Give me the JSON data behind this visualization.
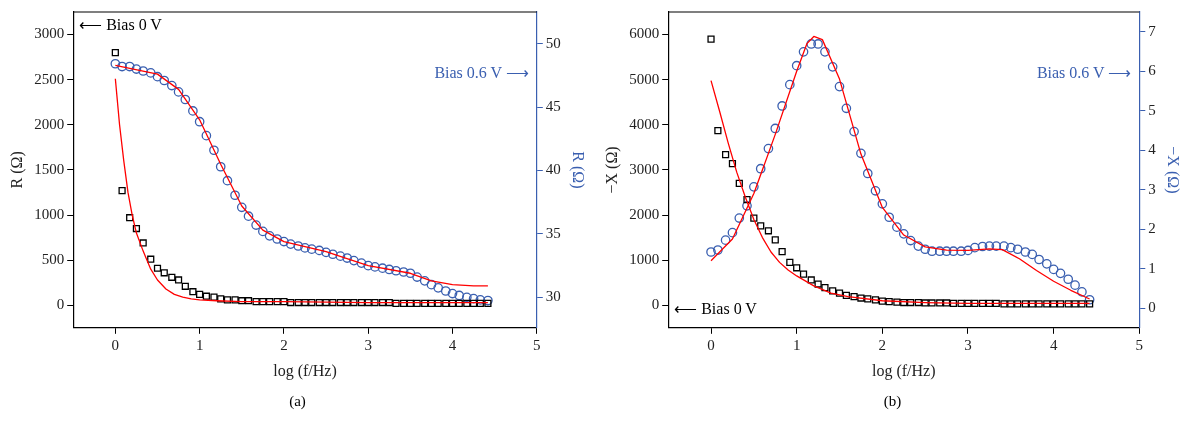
{
  "chart_data": [
    {
      "type": "scatter",
      "xlabel": "log (f/Hz)",
      "ylabel": "R (Ω)",
      "y2label": "R (Ω)",
      "annotations": [
        "(a)",
        "⟵ Bias 0 V",
        "Bias 0.6 V ⟶"
      ],
      "xlim": [
        -0.5,
        5
      ],
      "xticks": [
        0,
        1,
        2,
        3,
        4,
        5
      ],
      "ylim": [
        -250,
        3250
      ],
      "yticks": [
        0,
        500,
        1000,
        1500,
        2000,
        2500,
        3000
      ],
      "y2lim": [
        27.6,
        52.5
      ],
      "y2ticks": [
        30,
        35,
        40,
        45,
        50
      ],
      "x": [
        0,
        0.08,
        0.17,
        0.25,
        0.33,
        0.42,
        0.5,
        0.58,
        0.67,
        0.75,
        0.83,
        0.92,
        1,
        1.08,
        1.17,
        1.25,
        1.33,
        1.42,
        1.5,
        1.58,
        1.67,
        1.75,
        1.83,
        1.92,
        2,
        2.08,
        2.17,
        2.25,
        2.33,
        2.42,
        2.5,
        2.58,
        2.67,
        2.75,
        2.83,
        2.92,
        3,
        3.08,
        3.17,
        3.25,
        3.33,
        3.42,
        3.5,
        3.58,
        3.67,
        3.75,
        3.83,
        3.92,
        4,
        4.08,
        4.17,
        4.25,
        4.33,
        4.42
      ],
      "series": [
        {
          "type": "scatter",
          "marker": "square",
          "color": "#000000",
          "values": [
            2800,
            1270,
            970,
            850,
            690,
            510,
            410,
            360,
            310,
            280,
            210,
            150,
            120,
            100,
            90,
            70,
            60,
            60,
            50,
            50,
            40,
            40,
            40,
            40,
            40,
            30,
            30,
            30,
            30,
            30,
            30,
            30,
            30,
            30,
            30,
            30,
            30,
            30,
            30,
            30,
            20,
            20,
            20,
            20,
            20,
            20,
            20,
            20,
            20,
            20,
            20,
            20,
            20,
            20
          ]
        },
        {
          "type": "line",
          "marker": "none",
          "color": "#ff0000",
          "x": [
            0,
            0.05,
            0.1,
            0.15,
            0.2,
            0.25,
            0.33,
            0.42,
            0.5,
            0.6,
            0.7,
            0.8,
            0.9,
            1,
            1.2,
            1.5,
            2,
            3,
            4.42
          ],
          "values": [
            2510,
            2000,
            1600,
            1250,
            1000,
            800,
            600,
            400,
            280,
            180,
            120,
            90,
            70,
            60,
            50,
            40,
            40,
            30,
            30
          ]
        },
        {
          "type": "scatter",
          "marker": "circle",
          "axis": "y2",
          "color": "#3a5fb0",
          "values": [
            48.42,
            48.2,
            48.2,
            48.0,
            47.85,
            47.7,
            47.4,
            47.1,
            46.7,
            46.2,
            45.6,
            44.7,
            43.85,
            42.75,
            41.6,
            40.3,
            39.2,
            38.05,
            37.1,
            36.4,
            35.7,
            35.2,
            34.85,
            34.6,
            34.4,
            34.2,
            34.05,
            33.9,
            33.8,
            33.7,
            33.55,
            33.4,
            33.25,
            33.1,
            32.9,
            32.7,
            32.5,
            32.4,
            32.3,
            32.2,
            32.1,
            32.0,
            31.9,
            31.6,
            31.3,
            31.0,
            30.75,
            30.5,
            30.3,
            30.15,
            30.0,
            29.9,
            29.8,
            29.75
          ]
        },
        {
          "type": "line",
          "marker": "none",
          "axis": "y2",
          "color": "#ff0000",
          "x": [
            0,
            0.5,
            0.75,
            1,
            1.25,
            1.5,
            1.75,
            2,
            2.5,
            3,
            3.5,
            3.75,
            4,
            4.25,
            4.42
          ],
          "values": [
            48.3,
            47.6,
            46.4,
            44.0,
            40.5,
            37.2,
            35.3,
            34.4,
            33.6,
            32.5,
            31.9,
            31.3,
            31.0,
            30.9,
            30.9
          ]
        }
      ]
    },
    {
      "type": "scatter",
      "xlabel": "log (f/Hz)",
      "ylabel": "−X (Ω)",
      "y2label": "−X (Ω)",
      "annotations": [
        "(b)",
        "⟵ Bias 0 V",
        "Bias 0.6 V ⟶"
      ],
      "xlim": [
        -0.5,
        5
      ],
      "xticks": [
        0,
        1,
        2,
        3,
        4,
        5
      ],
      "ylim": [
        -500,
        6500
      ],
      "yticks": [
        0,
        1000,
        2000,
        3000,
        4000,
        5000,
        6000
      ],
      "y2lim": [
        -0.5,
        7.5
      ],
      "y2ticks": [
        0,
        1,
        2,
        3,
        4,
        5,
        6,
        7
      ],
      "x": [
        0,
        0.08,
        0.17,
        0.25,
        0.33,
        0.42,
        0.5,
        0.58,
        0.67,
        0.75,
        0.83,
        0.92,
        1,
        1.08,
        1.17,
        1.25,
        1.33,
        1.42,
        1.5,
        1.58,
        1.67,
        1.75,
        1.83,
        1.92,
        2,
        2.08,
        2.17,
        2.25,
        2.33,
        2.42,
        2.5,
        2.58,
        2.67,
        2.75,
        2.83,
        2.92,
        3,
        3.08,
        3.17,
        3.25,
        3.33,
        3.42,
        3.5,
        3.58,
        3.67,
        3.75,
        3.83,
        3.92,
        4,
        4.08,
        4.17,
        4.25,
        4.33,
        4.42
      ],
      "series": [
        {
          "type": "scatter",
          "marker": "square",
          "color": "#000000",
          "values": [
            5900,
            3870,
            3340,
            3140,
            2700,
            2340,
            1930,
            1760,
            1650,
            1450,
            1190,
            950,
            830,
            690,
            560,
            470,
            390,
            320,
            270,
            220,
            190,
            160,
            140,
            120,
            90,
            80,
            70,
            60,
            60,
            60,
            50,
            50,
            50,
            50,
            40,
            40,
            40,
            40,
            40,
            40,
            40,
            30,
            30,
            30,
            30,
            30,
            30,
            30,
            30,
            30,
            30,
            30,
            30,
            30
          ]
        },
        {
          "type": "line",
          "marker": "none",
          "color": "#ff0000",
          "x": [
            0,
            0.1,
            0.2,
            0.3,
            0.4,
            0.5,
            0.6,
            0.7,
            0.8,
            0.9,
            1,
            1.2,
            1.4,
            1.6,
            2,
            2.5,
            3,
            4.42
          ],
          "values": [
            4980,
            4300,
            3600,
            2950,
            2400,
            1900,
            1500,
            1180,
            950,
            780,
            650,
            430,
            270,
            190,
            100,
            60,
            40,
            40
          ]
        },
        {
          "type": "scatter",
          "marker": "circle",
          "axis": "y2",
          "color": "#3a5fb0",
          "values": [
            1.42,
            1.47,
            1.72,
            1.91,
            2.28,
            2.59,
            3.07,
            3.53,
            4.04,
            4.55,
            5.12,
            5.66,
            6.14,
            6.49,
            6.69,
            6.69,
            6.49,
            6.11,
            5.61,
            5.06,
            4.47,
            3.92,
            3.41,
            2.97,
            2.64,
            2.3,
            2.05,
            1.88,
            1.71,
            1.57,
            1.49,
            1.44,
            1.44,
            1.44,
            1.44,
            1.44,
            1.46,
            1.53,
            1.56,
            1.57,
            1.57,
            1.57,
            1.53,
            1.49,
            1.42,
            1.36,
            1.23,
            1.12,
            0.98,
            0.88,
            0.73,
            0.58,
            0.41,
            0.21
          ]
        },
        {
          "type": "line",
          "marker": "none",
          "axis": "y2",
          "color": "#ff0000",
          "x": [
            0,
            0.25,
            0.5,
            0.75,
            1,
            1.12,
            1.2,
            1.3,
            1.5,
            1.75,
            2,
            2.25,
            2.5,
            2.75,
            3,
            3.25,
            3.4,
            3.6,
            3.8,
            4,
            4.2,
            4.42
          ],
          "values": [
            1.2,
            1.75,
            2.9,
            4.4,
            6.0,
            6.7,
            6.88,
            6.8,
            5.8,
            3.9,
            2.55,
            1.85,
            1.55,
            1.47,
            1.46,
            1.5,
            1.48,
            1.25,
            0.95,
            0.68,
            0.45,
            0.23
          ]
        }
      ]
    }
  ]
}
